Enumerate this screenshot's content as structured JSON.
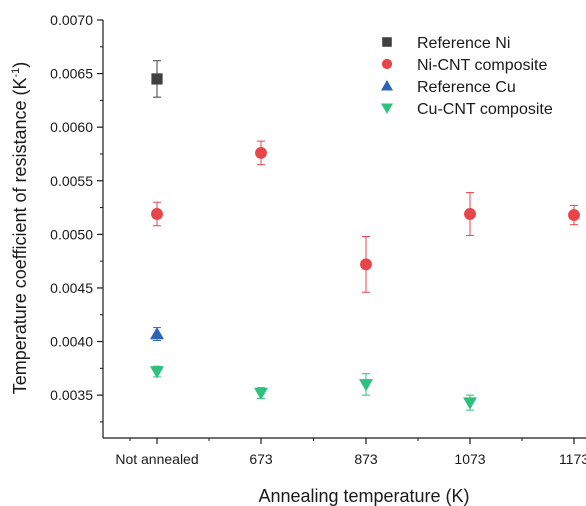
{
  "chart_data": {
    "type": "scatter",
    "xlabel": "Annealing temperature (K)",
    "ylabel": "Temperature coefficient of resistance (K",
    "ylabel_sup": "-1",
    "ylabel_close": ")",
    "categories": [
      "Not annealed",
      "673",
      "873",
      "1073",
      "1173"
    ],
    "ylim": [
      0.0031,
      0.007
    ],
    "yticks": [
      "0.0035",
      "0.0040",
      "0.0045",
      "0.0050",
      "0.0055",
      "0.0060",
      "0.0065",
      "0.0070"
    ],
    "grid": false,
    "legend_position": "top-right",
    "series": [
      {
        "name": "Reference Ni",
        "marker": "square",
        "color": "#404040",
        "points": [
          {
            "x": "Not annealed",
            "y": 0.00645,
            "err": 0.00017
          }
        ]
      },
      {
        "name": "Ni-CNT composite",
        "marker": "circle",
        "color": "#e8454b",
        "points": [
          {
            "x": "Not annealed",
            "y": 0.00519,
            "err": 0.00011
          },
          {
            "x": "673",
            "y": 0.00576,
            "err": 0.00011
          },
          {
            "x": "873",
            "y": 0.00472,
            "err": 0.00026
          },
          {
            "x": "1073",
            "y": 0.00519,
            "err": 0.0002
          },
          {
            "x": "1173",
            "y": 0.00518,
            "err": 9e-05
          }
        ]
      },
      {
        "name": "Reference Cu",
        "marker": "triangle-up",
        "color": "#2e63b8",
        "points": [
          {
            "x": "Not annealed",
            "y": 0.00407,
            "err": 6e-05
          }
        ]
      },
      {
        "name": "Cu-CNT composite",
        "marker": "triangle-down",
        "color": "#2fbf7f",
        "points": [
          {
            "x": "Not annealed",
            "y": 0.00372,
            "err": 5e-05
          },
          {
            "x": "673",
            "y": 0.00352,
            "err": 5e-05
          },
          {
            "x": "873",
            "y": 0.0036,
            "err": 0.0001
          },
          {
            "x": "1073",
            "y": 0.00343,
            "err": 7e-05
          }
        ]
      }
    ]
  }
}
